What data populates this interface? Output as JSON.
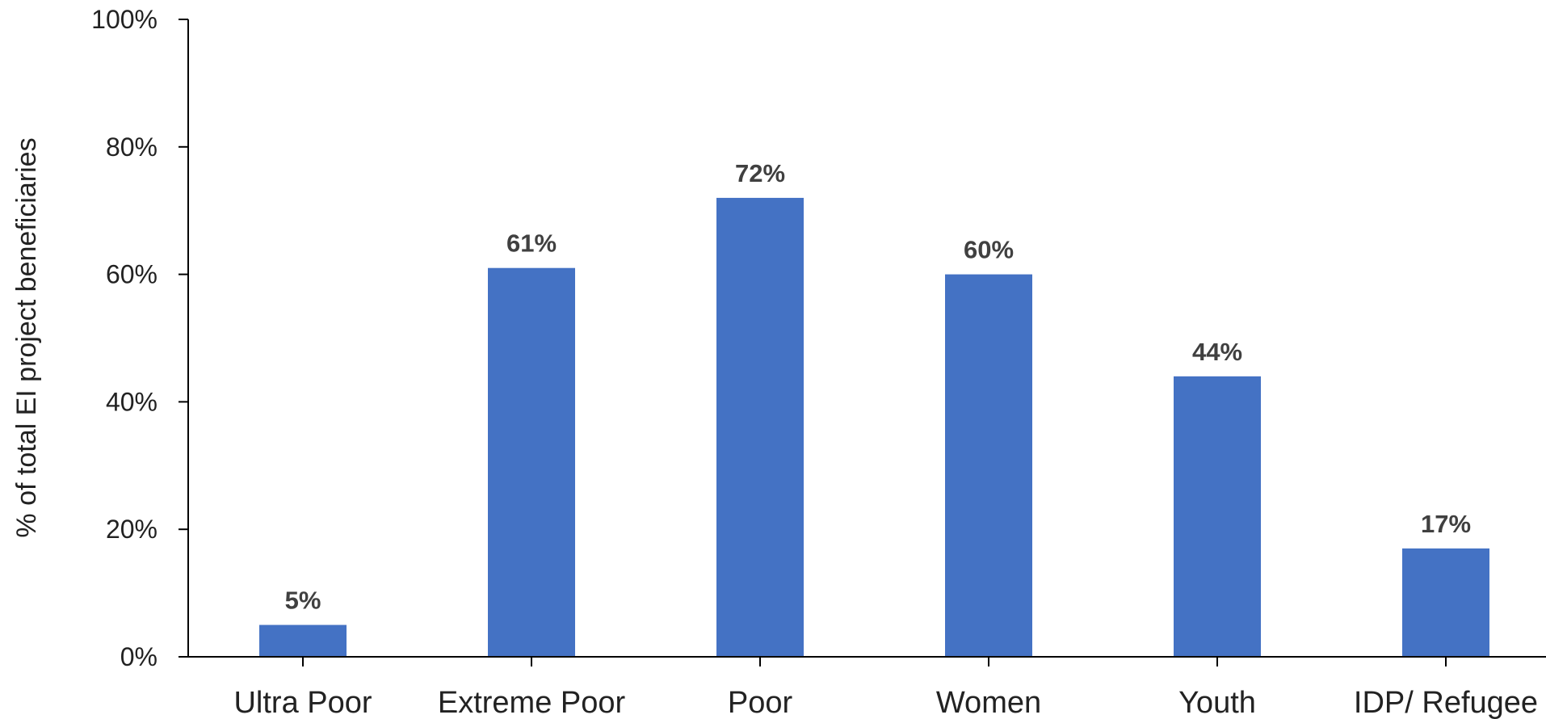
{
  "chart_data": {
    "type": "bar",
    "categories": [
      "Ultra Poor",
      "Extreme Poor",
      "Poor",
      "Women",
      "Youth",
      "IDP/ Refugee"
    ],
    "values": [
      5,
      61,
      72,
      60,
      44,
      17
    ],
    "data_labels": [
      "5%",
      "61%",
      "72%",
      "60%",
      "44%",
      "17%"
    ],
    "title": "",
    "xlabel": "",
    "ylabel": "% of total EI project beneficiaries",
    "ylim": [
      0,
      100
    ],
    "yticks": [
      0,
      20,
      40,
      60,
      80,
      100
    ],
    "ytick_labels": [
      "0%",
      "20%",
      "40%",
      "60%",
      "80%",
      "100%"
    ],
    "grid": false,
    "legend": "none",
    "bar_color": "#4472C4",
    "axis_color": "#000000"
  }
}
